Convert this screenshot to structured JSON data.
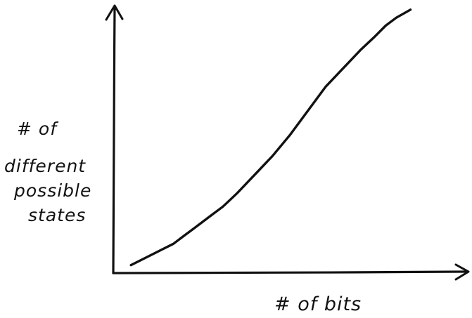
{
  "chart_data": {
    "type": "line",
    "title": "",
    "xlabel": "# of bits",
    "ylabel_lines": [
      "# of",
      "different",
      "possible",
      "states"
    ],
    "grid": false,
    "axis_ticks": false,
    "series": [
      {
        "x": [
          0.05,
          0.08,
          0.11,
          0.14,
          0.17,
          0.2,
          0.23,
          0.27,
          0.31,
          0.35,
          0.4,
          0.45,
          0.5,
          0.55,
          0.6,
          0.65,
          0.7,
          0.74,
          0.77,
          0.8,
          0.84
        ],
        "y": [
          0.03,
          0.05,
          0.07,
          0.09,
          0.11,
          0.14,
          0.17,
          0.21,
          0.25,
          0.3,
          0.37,
          0.44,
          0.52,
          0.61,
          0.7,
          0.77,
          0.84,
          0.89,
          0.93,
          0.96,
          0.99
        ]
      }
    ],
    "colors": {
      "ink": "#111111",
      "background": "#ffffff"
    }
  }
}
